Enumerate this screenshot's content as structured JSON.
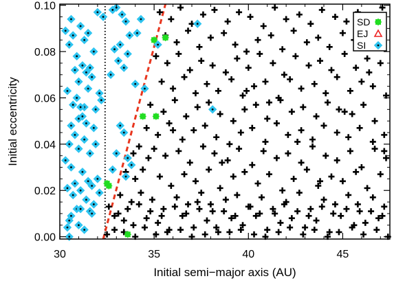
{
  "chart_data": {
    "type": "scatter",
    "xlabel": "Initial semi−major axis (AU)",
    "ylabel": "Initial eccentricity",
    "xlim": [
      30,
      47.5
    ],
    "ylim": [
      -0.001,
      0.1005
    ],
    "x_ticks": [
      30,
      35,
      40,
      45
    ],
    "y_ticks": [
      0.0,
      0.02,
      0.04,
      0.06,
      0.08,
      0.1
    ],
    "y_tick_labels": [
      "0.00",
      "0.02",
      "0.04",
      "0.06",
      "0.08",
      "0.10"
    ],
    "legend_position": "top-right",
    "reference_lines": [
      {
        "style": "dotted",
        "color": "#000000",
        "x": [
          32.4,
          32.4
        ],
        "y": [
          -0.001,
          0.1005
        ]
      },
      {
        "style": "dashed",
        "color": "#e8361e",
        "x": [
          32.3,
          35.6
        ],
        "y": [
          -0.001,
          0.1005
        ]
      }
    ],
    "series": [
      {
        "name": "SD",
        "marker": "asterisk",
        "color": "#22dd22",
        "x": [
          35.0,
          35.6,
          34.4,
          35.1,
          32.6,
          33.6,
          32.5
        ],
        "y": [
          0.085,
          0.086,
          0.052,
          0.052,
          0.022,
          0.001,
          0.023
        ]
      },
      {
        "name": "EJ",
        "marker": "triangle",
        "color": "#ee2222",
        "x": [],
        "y": []
      },
      {
        "name": "SI",
        "marker": "diamond",
        "color": "#2ec4f0",
        "x": [
          30.3,
          30.6,
          30.5,
          30.7,
          30.9,
          31.1,
          31.3,
          31.5,
          31.8,
          32.0,
          31.2,
          31.4,
          30.8,
          31.0,
          31.6,
          31.7,
          30.4,
          30.9,
          31.3,
          31.9,
          32.1,
          32.2,
          31.5,
          31.1,
          30.7,
          31.2,
          31.0,
          31.4,
          30.6,
          31.8,
          32.3,
          32.8,
          33.0,
          33.3,
          33.5,
          33.7,
          34.1,
          34.3,
          33.2,
          32.9,
          33.6,
          33.1,
          33.4,
          32.7,
          34.0,
          34.5,
          35.2,
          37.3,
          38.1,
          30.5,
          30.8,
          31.0,
          31.3,
          31.6,
          31.9,
          30.3,
          30.6,
          31.2,
          31.5,
          31.7,
          32.0,
          30.4,
          30.7,
          31.1,
          31.4,
          31.8,
          30.9,
          31.6,
          33.2,
          33.4,
          33.0,
          33.6,
          33.8,
          32.8,
          33.5,
          30.5,
          31.0,
          31.3,
          30.6,
          31.1,
          31.7,
          30.4,
          30.8,
          32.1,
          30.5
        ],
        "y": [
          0.089,
          0.094,
          0.083,
          0.087,
          0.078,
          0.091,
          0.085,
          0.088,
          0.08,
          0.097,
          0.074,
          0.071,
          0.072,
          0.067,
          0.073,
          0.069,
          0.063,
          0.06,
          0.056,
          0.055,
          0.062,
          0.059,
          0.064,
          0.056,
          0.057,
          0.052,
          0.051,
          0.049,
          0.048,
          0.047,
          0.095,
          0.098,
          0.099,
          0.096,
          0.093,
          0.087,
          0.088,
          0.094,
          0.083,
          0.081,
          0.079,
          0.076,
          0.073,
          0.07,
          0.066,
          0.064,
          0.083,
          0.092,
          0.055,
          0.04,
          0.044,
          0.038,
          0.042,
          0.036,
          0.04,
          0.033,
          0.03,
          0.028,
          0.024,
          0.022,
          0.025,
          0.021,
          0.018,
          0.02,
          0.016,
          0.014,
          0.012,
          0.011,
          0.048,
          0.045,
          0.036,
          0.034,
          0.031,
          0.029,
          0.026,
          0.007,
          0.005,
          0.003,
          0.009,
          0.012,
          0.01,
          0.004,
          0.023,
          0.019,
          0.0
        ]
      }
    ],
    "extra_points": {
      "marker": "cross",
      "color": "#000000",
      "x": [
        35.3,
        35.9,
        36.4,
        37.0,
        37.6,
        38.2,
        38.9,
        39.5,
        40.1,
        40.8,
        41.4,
        42.0,
        42.7,
        43.3,
        43.9,
        44.6,
        45.2,
        45.8,
        46.5,
        47.1,
        35.6,
        36.2,
        36.8,
        37.4,
        38.0,
        38.7,
        39.3,
        39.9,
        40.5,
        41.2,
        41.8,
        42.4,
        43.1,
        43.7,
        44.3,
        45.0,
        45.6,
        46.2,
        46.9,
        35.1,
        35.7,
        36.3,
        36.9,
        37.5,
        38.1,
        38.8,
        39.4,
        40.0,
        40.6,
        41.3,
        41.9,
        42.5,
        43.2,
        43.8,
        44.4,
        45.1,
        45.7,
        46.3,
        47.0,
        35.4,
        36.0,
        36.6,
        37.2,
        37.8,
        38.4,
        39.1,
        39.7,
        40.3,
        40.9,
        41.6,
        42.2,
        42.8,
        43.5,
        44.1,
        44.7,
        45.4,
        46.0,
        46.6,
        47.3,
        34.8,
        35.5,
        36.1,
        36.7,
        37.3,
        37.9,
        38.5,
        39.2,
        39.8,
        40.4,
        41.0,
        41.7,
        42.3,
        42.9,
        43.6,
        44.2,
        44.8,
        45.5,
        46.1,
        46.7,
        34.6,
        35.2,
        35.8,
        36.5,
        37.1,
        37.7,
        38.3,
        39.0,
        39.6,
        40.2,
        40.9,
        41.5,
        42.1,
        42.8,
        43.4,
        44.0,
        44.7,
        45.3,
        45.9,
        46.6,
        47.2,
        33.9,
        34.2,
        34.7,
        35.0,
        35.6,
        36.3,
        36.9,
        37.6,
        38.2,
        38.9,
        39.5,
        40.2,
        40.8,
        41.5,
        42.1,
        42.8,
        43.4,
        44.1,
        44.7,
        45.4,
        46.0,
        46.7,
        47.3,
        33.5,
        34.0,
        34.4,
        35.3,
        35.9,
        36.6,
        37.2,
        37.9,
        38.5,
        39.2,
        39.8,
        40.5,
        41.1,
        41.8,
        42.4,
        43.1,
        43.7,
        44.4,
        45.0,
        45.7,
        46.3,
        47.0,
        33.2,
        33.8,
        34.3,
        34.9,
        35.5,
        36.2,
        36.8,
        37.5,
        38.1,
        38.8,
        39.4,
        40.1,
        40.7,
        41.4,
        42.0,
        42.7,
        43.3,
        44.0,
        44.6,
        45.3,
        45.9,
        46.6,
        47.2,
        32.9,
        33.4,
        33.9,
        34.6,
        35.2,
        35.8,
        36.5,
        37.1,
        37.8,
        38.4,
        39.1,
        39.7,
        40.4,
        41.0,
        41.7,
        42.3,
        43.0,
        43.6,
        44.3,
        44.9,
        45.6,
        46.2,
        46.9,
        32.6,
        33.1,
        33.6,
        34.2,
        34.8,
        35.4,
        36.1,
        36.7,
        37.4,
        38.0,
        38.7,
        39.3,
        40.0,
        40.6,
        41.3,
        41.9,
        42.6,
        43.2,
        43.9,
        44.5,
        45.2,
        45.8,
        46.5,
        47.1,
        32.5,
        32.9,
        33.4,
        34.0,
        34.5,
        35.1,
        35.7,
        36.4,
        37.0,
        37.7,
        38.3,
        39.0,
        39.6,
        40.3,
        40.9,
        41.6,
        42.2,
        42.9,
        43.5,
        44.2,
        44.8,
        45.5,
        46.1,
        46.8,
        47.4,
        36.0,
        38.6,
        41.1,
        43.8,
        46.4,
        37.3,
        39.9,
        42.6,
        45.1,
        47.2
      ],
      "y": [
        0.097,
        0.094,
        0.099,
        0.092,
        0.096,
        0.098,
        0.093,
        0.097,
        0.095,
        0.091,
        0.099,
        0.094,
        0.096,
        0.092,
        0.098,
        0.095,
        0.093,
        0.097,
        0.094,
        0.099,
        0.087,
        0.084,
        0.089,
        0.082,
        0.086,
        0.088,
        0.083,
        0.08,
        0.085,
        0.087,
        0.081,
        0.089,
        0.084,
        0.086,
        0.082,
        0.088,
        0.085,
        0.083,
        0.087,
        0.078,
        0.075,
        0.079,
        0.072,
        0.076,
        0.074,
        0.071,
        0.077,
        0.073,
        0.079,
        0.075,
        0.07,
        0.078,
        0.074,
        0.076,
        0.072,
        0.079,
        0.073,
        0.077,
        0.075,
        0.067,
        0.064,
        0.069,
        0.062,
        0.066,
        0.063,
        0.068,
        0.061,
        0.065,
        0.067,
        0.06,
        0.068,
        0.064,
        0.066,
        0.062,
        0.069,
        0.063,
        0.067,
        0.065,
        0.061,
        0.057,
        0.054,
        0.059,
        0.052,
        0.056,
        0.058,
        0.053,
        0.05,
        0.055,
        0.057,
        0.051,
        0.059,
        0.054,
        0.056,
        0.052,
        0.058,
        0.055,
        0.053,
        0.057,
        0.05,
        0.047,
        0.044,
        0.049,
        0.042,
        0.046,
        0.048,
        0.043,
        0.04,
        0.045,
        0.047,
        0.041,
        0.049,
        0.044,
        0.046,
        0.042,
        0.048,
        0.045,
        0.043,
        0.047,
        0.041,
        0.044,
        0.036,
        0.039,
        0.034,
        0.038,
        0.035,
        0.037,
        0.032,
        0.039,
        0.036,
        0.033,
        0.038,
        0.031,
        0.037,
        0.034,
        0.036,
        0.032,
        0.039,
        0.035,
        0.033,
        0.037,
        0.03,
        0.038,
        0.034,
        0.028,
        0.025,
        0.029,
        0.026,
        0.022,
        0.027,
        0.024,
        0.029,
        0.021,
        0.026,
        0.028,
        0.023,
        0.027,
        0.02,
        0.025,
        0.029,
        0.022,
        0.026,
        0.024,
        0.028,
        0.021,
        0.027,
        0.018,
        0.015,
        0.019,
        0.016,
        0.012,
        0.017,
        0.014,
        0.019,
        0.011,
        0.016,
        0.018,
        0.013,
        0.017,
        0.01,
        0.015,
        0.019,
        0.012,
        0.016,
        0.014,
        0.018,
        0.011,
        0.017,
        0.013,
        0.009,
        0.007,
        0.005,
        0.008,
        0.006,
        0.003,
        0.009,
        0.004,
        0.007,
        0.002,
        0.008,
        0.005,
        0.009,
        0.003,
        0.006,
        0.008,
        0.004,
        0.007,
        0.002,
        0.009,
        0.005,
        0.006,
        0.008,
        0.013,
        0.01,
        0.012,
        0.014,
        0.011,
        0.009,
        0.013,
        0.01,
        0.012,
        0.014,
        0.011,
        0.009,
        0.013,
        0.01,
        0.012,
        0.014,
        0.011,
        0.009,
        0.013,
        0.01,
        0.012,
        0.014,
        0.011,
        0.009,
        0.001,
        0.003,
        0.002,
        0.0,
        0.004,
        0.001,
        0.002,
        0.003,
        0.0,
        0.001,
        0.004,
        0.002,
        0.003,
        0.001,
        0.0,
        0.002,
        0.004,
        0.001,
        0.003,
        0.0,
        0.002,
        0.004,
        0.001,
        0.003,
        0.0,
        0.046,
        0.032,
        0.058,
        0.024,
        0.071,
        0.015,
        0.063,
        0.041,
        0.054,
        0.037
      ]
    }
  }
}
